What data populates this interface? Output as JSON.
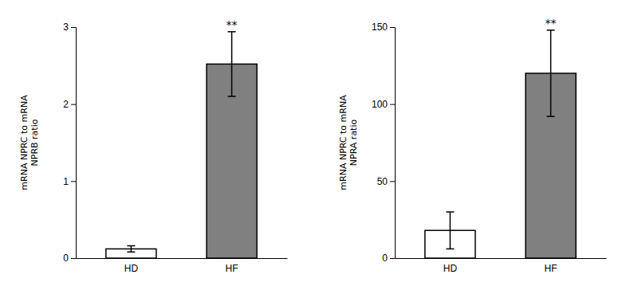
{
  "chart_data": [
    {
      "type": "bar",
      "categories": [
        "HD",
        "HF"
      ],
      "values": [
        0.12,
        2.52
      ],
      "errors": [
        0.04,
        0.42
      ],
      "colors": [
        "#ffffff",
        "#808080"
      ],
      "ylabel": "mRNA NPRC to mRNA\nNPRB ratio",
      "ylim": [
        0,
        3
      ],
      "yticks": [
        0,
        1,
        2,
        3
      ],
      "annotations": [
        {
          "text": "**",
          "x": "HF"
        }
      ]
    },
    {
      "type": "bar",
      "categories": [
        "HD",
        "HF"
      ],
      "values": [
        18,
        120
      ],
      "errors": [
        12,
        28
      ],
      "colors": [
        "#ffffff",
        "#808080"
      ],
      "ylabel": "mRNA NPRC to mRNA\nNPRA ratio",
      "ylim": [
        0,
        150
      ],
      "yticks": [
        0,
        50,
        100,
        150
      ],
      "annotations": [
        {
          "text": "**",
          "x": "HF"
        }
      ]
    }
  ]
}
